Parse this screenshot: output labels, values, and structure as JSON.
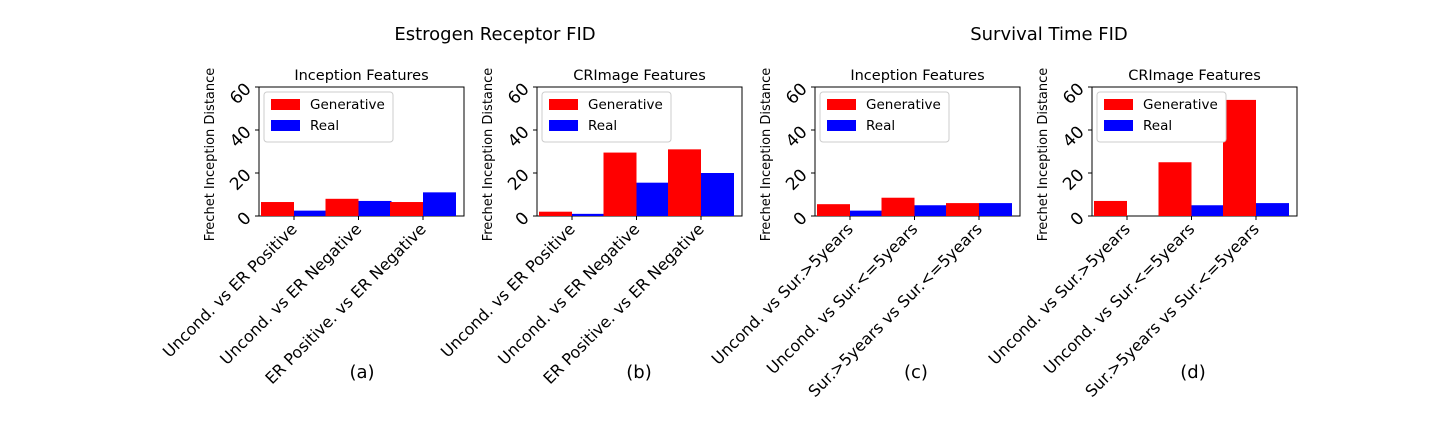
{
  "titles": {
    "left": "Estrogen Receptor FID",
    "right": "Survival Time FID"
  },
  "colors": {
    "generative": "#ff0000",
    "real": "#0000ff"
  },
  "chart_data": [
    {
      "type": "bar",
      "panel_label": "(a)",
      "title": "Inception Features",
      "ylabel": "Frechet Inception Distance",
      "ylim": [
        0,
        60
      ],
      "yticks": [
        0,
        20,
        40,
        60
      ],
      "legend_position": "top-left",
      "categories": [
        "Uncond. vs ER Positive",
        "Uncond. vs ER Negative",
        "ER Positive. vs ER Negative"
      ],
      "series": [
        {
          "name": "Generative",
          "values": [
            6.5,
            8,
            6.5
          ]
        },
        {
          "name": "Real",
          "values": [
            2.5,
            7,
            11
          ]
        }
      ]
    },
    {
      "type": "bar",
      "panel_label": "(b)",
      "title": "CRImage Features",
      "ylabel": "Frechet Inception Distance",
      "ylim": [
        0,
        60
      ],
      "yticks": [
        0,
        20,
        40,
        60
      ],
      "legend_position": "top-left",
      "categories": [
        "Uncond. vs ER Positive",
        "Uncond. vs ER Negative",
        "ER Positive. vs ER Negative"
      ],
      "series": [
        {
          "name": "Generative",
          "values": [
            2,
            29.5,
            31
          ]
        },
        {
          "name": "Real",
          "values": [
            1,
            15.5,
            20
          ]
        }
      ]
    },
    {
      "type": "bar",
      "panel_label": "(c)",
      "title": "Inception Features",
      "ylabel": "Frechet Inception Distance",
      "ylim": [
        0,
        60
      ],
      "yticks": [
        0,
        20,
        40,
        60
      ],
      "legend_position": "top-left",
      "categories": [
        "Uncond. vs Sur.>5years",
        "Uncond. vs Sur.<=5years",
        "Sur.>5years vs Sur.<=5years"
      ],
      "series": [
        {
          "name": "Generative",
          "values": [
            5.5,
            8.5,
            6
          ]
        },
        {
          "name": "Real",
          "values": [
            2.5,
            5,
            6
          ]
        }
      ]
    },
    {
      "type": "bar",
      "panel_label": "(d)",
      "title": "CRImage Features",
      "ylabel": "Frechet Inception Distance",
      "ylim": [
        0,
        60
      ],
      "yticks": [
        0,
        20,
        40,
        60
      ],
      "legend_position": "top-left",
      "categories": [
        "Uncond. vs Sur.>5years",
        "Uncond. vs Sur.<=5years",
        "Sur.>5years vs Sur.<=5years"
      ],
      "series": [
        {
          "name": "Generative",
          "values": [
            7,
            25,
            54
          ]
        },
        {
          "name": "Real",
          "values": [
            0,
            5,
            6
          ]
        }
      ]
    }
  ]
}
